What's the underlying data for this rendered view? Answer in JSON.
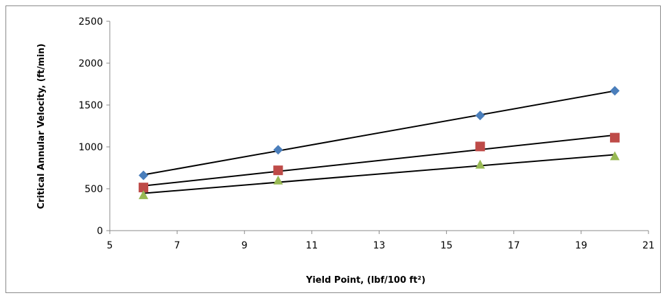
{
  "chart_data": {
    "type": "scatter",
    "x_label": "Yield Point, (lbf/100 ft²)",
    "y_label": "Critical Annular Velocity, (ft/min)",
    "x": [
      6,
      10,
      16,
      20
    ],
    "series": [
      {
        "color": "#4a7ebb",
        "marker": "diamond",
        "values": [
          660,
          965,
          1375,
          1670
        ]
      },
      {
        "color": "#be4b48",
        "marker": "square",
        "values": [
          515,
          720,
          1005,
          1110
        ]
      },
      {
        "color": "#98b954",
        "marker": "triangle",
        "values": [
          425,
          600,
          790,
          890
        ]
      }
    ],
    "trendline": "linear",
    "xlim": [
      5,
      21
    ],
    "xticks": [
      5,
      7,
      9,
      11,
      13,
      15,
      17,
      19,
      21
    ],
    "ylim": [
      0,
      2500
    ],
    "yticks": [
      0,
      500,
      1000,
      1500,
      2000,
      2500
    ],
    "grid": false
  }
}
